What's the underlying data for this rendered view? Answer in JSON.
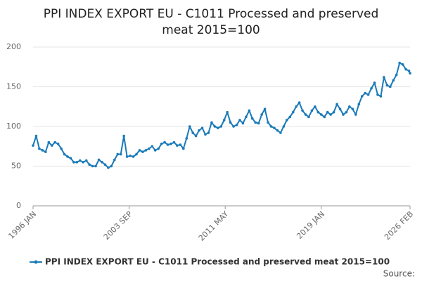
{
  "chart_data": {
    "type": "line",
    "title": [
      "PPI INDEX EXPORT EU - C1011 Processed and preserved",
      "meat 2015=100"
    ],
    "source": "Source:",
    "x": [
      "1996-01",
      "1996-04",
      "1996-07",
      "1996-10",
      "1997-01",
      "1997-04",
      "1997-07",
      "1997-10",
      "1998-01",
      "1998-04",
      "1998-07",
      "1998-10",
      "1999-01",
      "1999-04",
      "1999-07",
      "1999-10",
      "2000-01",
      "2000-04",
      "2000-07",
      "2000-10",
      "2001-01",
      "2001-04",
      "2001-07",
      "2001-10",
      "2002-01",
      "2002-04",
      "2002-07",
      "2002-10",
      "2003-01",
      "2003-04",
      "2003-07",
      "2003-10",
      "2004-01",
      "2004-04",
      "2004-07",
      "2004-10",
      "2005-01",
      "2005-04",
      "2005-07",
      "2005-10",
      "2006-01",
      "2006-04",
      "2006-07",
      "2006-10",
      "2007-01",
      "2007-04",
      "2007-07",
      "2007-10",
      "2008-01",
      "2008-04",
      "2008-07",
      "2008-10",
      "2009-01",
      "2009-04",
      "2009-07",
      "2009-10",
      "2010-01",
      "2010-04",
      "2010-07",
      "2010-10",
      "2011-01",
      "2011-04",
      "2011-07",
      "2011-10",
      "2012-01",
      "2012-04",
      "2012-07",
      "2012-10",
      "2013-01",
      "2013-04",
      "2013-07",
      "2013-10",
      "2014-01",
      "2014-04",
      "2014-07",
      "2014-10",
      "2015-01",
      "2015-04",
      "2015-07",
      "2015-10",
      "2016-01",
      "2016-04",
      "2016-07",
      "2016-10",
      "2017-01",
      "2017-04",
      "2017-07",
      "2017-10",
      "2018-01",
      "2018-04",
      "2018-07",
      "2018-10",
      "2019-01",
      "2019-04",
      "2019-07",
      "2019-10",
      "2020-01",
      "2020-04",
      "2020-07",
      "2020-10",
      "2021-01",
      "2021-04",
      "2021-07",
      "2021-10",
      "2022-01",
      "2022-04",
      "2022-07",
      "2022-10",
      "2023-01",
      "2023-04",
      "2023-07",
      "2023-10",
      "2024-01",
      "2024-04",
      "2024-07",
      "2024-10",
      "2025-01",
      "2025-04",
      "2025-07",
      "2025-10",
      "2026-01",
      "2026-02"
    ],
    "series": [
      {
        "name": "PPI INDEX EXPORT EU - C1011 Processed and preserved meat 2015=100",
        "color": "#1a7ab8",
        "values": [
          76,
          88,
          72,
          70,
          68,
          80,
          76,
          80,
          78,
          72,
          65,
          62,
          60,
          55,
          55,
          57,
          55,
          57,
          52,
          50,
          50,
          58,
          55,
          52,
          48,
          50,
          58,
          65,
          65,
          88,
          62,
          63,
          62,
          65,
          70,
          68,
          70,
          72,
          75,
          70,
          72,
          78,
          80,
          77,
          78,
          80,
          76,
          77,
          72,
          85,
          100,
          92,
          88,
          95,
          98,
          90,
          92,
          105,
          100,
          98,
          100,
          108,
          118,
          105,
          100,
          102,
          108,
          104,
          112,
          120,
          110,
          105,
          104,
          115,
          122,
          105,
          100,
          98,
          95,
          92,
          100,
          108,
          112,
          118,
          125,
          130,
          120,
          115,
          112,
          120,
          125,
          118,
          115,
          112,
          118,
          115,
          118,
          128,
          122,
          115,
          118,
          125,
          122,
          115,
          128,
          138,
          142,
          140,
          148,
          155,
          140,
          138,
          162,
          152,
          150,
          158,
          165,
          180,
          178,
          172,
          170,
          167
        ]
      }
    ],
    "ylim": [
      0,
      200
    ],
    "yticks": [
      0,
      50,
      100,
      150,
      200
    ],
    "xticks": [
      {
        "value": "1996-01",
        "label": "1996 JAN"
      },
      {
        "value": "2003-09",
        "label": "2003 SEP"
      },
      {
        "value": "2011-05",
        "label": "2011 MAY"
      },
      {
        "value": "2019-01",
        "label": "2019 JAN"
      },
      {
        "value": "2026-02",
        "label": "2026 FEB"
      }
    ],
    "grid": true
  }
}
